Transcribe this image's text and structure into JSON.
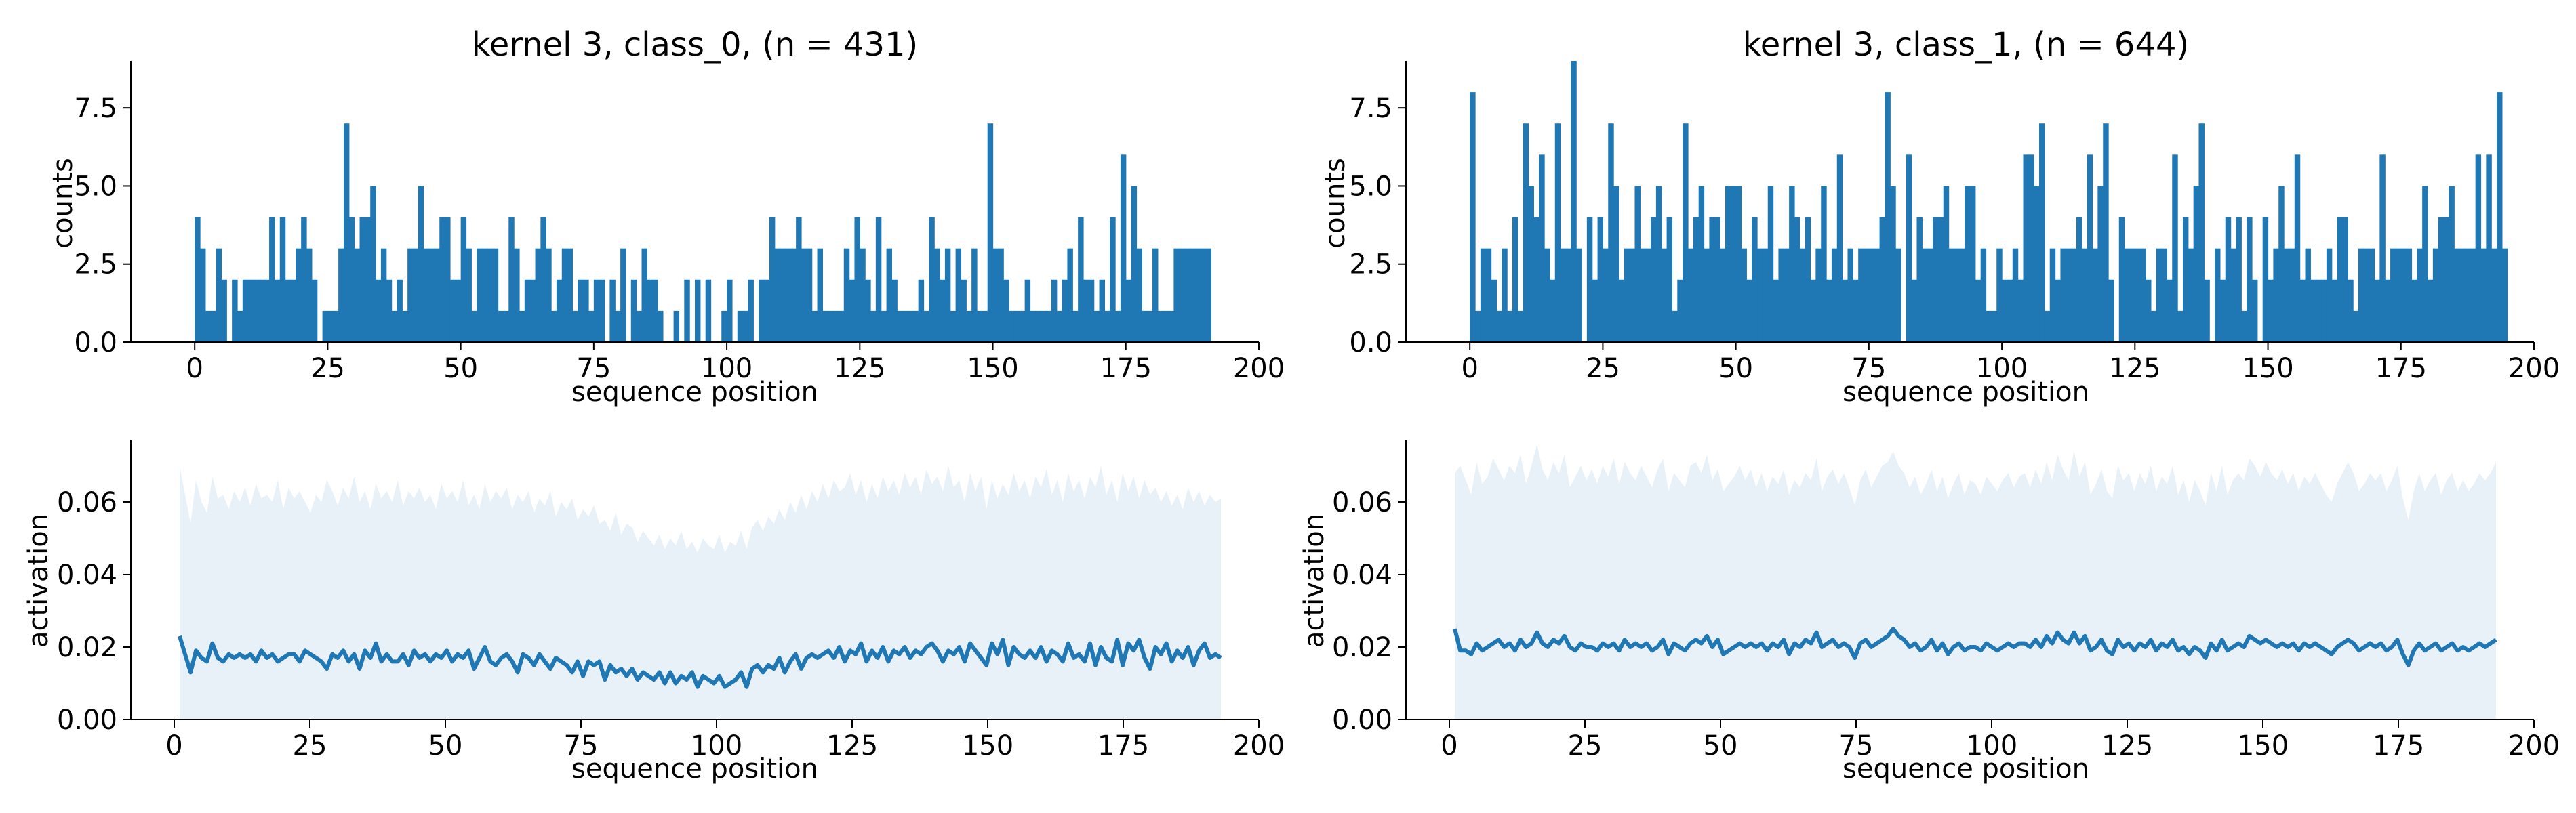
{
  "chart_data": [
    {
      "type": "bar",
      "panel": "top-left",
      "title": "kernel 3, class_0, (n = 431)",
      "xlabel": "sequence position",
      "ylabel": "counts",
      "xlim": [
        -12,
        200
      ],
      "ylim": [
        0,
        9
      ],
      "xticks": [
        0,
        25,
        50,
        75,
        100,
        125,
        150,
        175,
        200
      ],
      "xtick_labels": [
        "0",
        "25",
        "50",
        "75",
        "100",
        "125",
        "150",
        "175",
        "200"
      ],
      "yticks": [
        0,
        2.5,
        5.0,
        7.5
      ],
      "ytick_labels": [
        "0.0",
        "2.5",
        "5.0",
        "7.5"
      ],
      "color": "#1f77b4",
      "x_start": 0,
      "values": [
        4,
        3,
        1,
        1,
        3,
        2,
        0,
        2,
        1,
        2,
        2,
        2,
        2,
        2,
        4,
        2,
        4,
        2,
        2,
        3,
        4,
        3,
        2,
        0,
        1,
        1,
        1,
        3,
        7,
        4,
        3,
        4,
        4,
        5,
        2,
        3,
        2,
        1,
        2,
        1,
        3,
        3,
        5,
        3,
        3,
        3,
        4,
        4,
        2,
        2,
        4,
        3,
        1,
        3,
        3,
        3,
        3,
        1,
        1,
        4,
        3,
        1,
        2,
        2,
        3,
        4,
        3,
        1,
        2,
        3,
        3,
        1,
        2,
        2,
        1,
        2,
        2,
        0,
        2,
        1,
        3,
        0,
        2,
        1,
        3,
        2,
        2,
        1,
        0,
        0,
        1,
        0,
        2,
        0,
        2,
        0,
        2,
        0,
        0,
        1,
        2,
        0,
        1,
        1,
        2,
        0,
        2,
        2,
        4,
        3,
        3,
        3,
        3,
        4,
        3,
        3,
        1,
        3,
        1,
        1,
        1,
        1,
        3,
        2,
        4,
        3,
        2,
        1,
        4,
        1,
        3,
        2,
        1,
        1,
        1,
        1,
        2,
        1,
        4,
        3,
        2,
        3,
        1,
        3,
        2,
        1,
        3,
        1,
        1,
        7,
        3,
        3,
        2,
        1,
        1,
        1,
        2,
        1,
        1,
        1,
        1,
        2,
        1,
        2,
        3,
        1,
        4,
        2,
        2,
        1,
        2,
        1,
        4,
        1,
        6,
        2,
        5,
        3,
        1,
        1,
        3,
        1,
        1,
        1,
        3,
        3,
        3,
        3,
        3,
        3,
        3
      ]
    },
    {
      "type": "bar",
      "panel": "top-right",
      "title": "kernel 3, class_1, (n = 644)",
      "xlabel": "sequence position",
      "ylabel": "counts",
      "xlim": [
        -12,
        200
      ],
      "ylim": [
        0,
        9
      ],
      "xticks": [
        0,
        25,
        50,
        75,
        100,
        125,
        150,
        175,
        200
      ],
      "xtick_labels": [
        "0",
        "25",
        "50",
        "75",
        "100",
        "125",
        "150",
        "175",
        "200"
      ],
      "yticks": [
        0,
        2.5,
        5.0,
        7.5
      ],
      "ytick_labels": [
        "0.0",
        "2.5",
        "5.0",
        "7.5"
      ],
      "color": "#1f77b4",
      "x_start": 0,
      "values": [
        8,
        1,
        3,
        3,
        2,
        1,
        3,
        1,
        4,
        1,
        7,
        5,
        4,
        6,
        3,
        2,
        7,
        3,
        3,
        9,
        3,
        0,
        4,
        2,
        4,
        3,
        7,
        5,
        2,
        3,
        3,
        5,
        3,
        3,
        4,
        5,
        3,
        4,
        1,
        2,
        7,
        3,
        4,
        5,
        3,
        4,
        4,
        3,
        5,
        5,
        5,
        3,
        2,
        4,
        3,
        3,
        5,
        2,
        3,
        3,
        5,
        4,
        3,
        4,
        2,
        3,
        5,
        2,
        3,
        6,
        2,
        3,
        2,
        3,
        3,
        3,
        3,
        4,
        8,
        5,
        3,
        0,
        6,
        2,
        4,
        3,
        3,
        4,
        4,
        5,
        3,
        3,
        3,
        5,
        5,
        2,
        3,
        1,
        1,
        3,
        2,
        2,
        3,
        2,
        6,
        6,
        5,
        7,
        1,
        3,
        2,
        3,
        3,
        3,
        4,
        3,
        6,
        3,
        5,
        7,
        2,
        0,
        4,
        3,
        3,
        3,
        3,
        2,
        1,
        3,
        3,
        2,
        6,
        1,
        4,
        3,
        5,
        7,
        2,
        0,
        3,
        2,
        4,
        3,
        4,
        1,
        4,
        2,
        0,
        4,
        2,
        3,
        5,
        3,
        3,
        6,
        2,
        3,
        2,
        2,
        2,
        3,
        2,
        4,
        4,
        2,
        1,
        3,
        3,
        3,
        2,
        6,
        2,
        3,
        3,
        3,
        3,
        2,
        3,
        5,
        2,
        3,
        4,
        4,
        5,
        3,
        3,
        3,
        3,
        6,
        3,
        6,
        3,
        8,
        3
      ]
    },
    {
      "type": "area",
      "panel": "bottom-left",
      "xlabel": "sequence position",
      "ylabel": "activation",
      "xlim": [
        -8,
        200
      ],
      "ylim": [
        0,
        0.077
      ],
      "xticks": [
        0,
        25,
        50,
        75,
        100,
        125,
        150,
        175,
        200
      ],
      "xtick_labels": [
        "0",
        "25",
        "50",
        "75",
        "100",
        "125",
        "150",
        "175",
        "200"
      ],
      "yticks": [
        0,
        0.02,
        0.04,
        0.06
      ],
      "ytick_labels": [
        "0.00",
        "0.02",
        "0.04",
        "0.06"
      ],
      "line_color": "#1f77b4",
      "band_color": "#e8f0f8",
      "x_start": 1,
      "x_end": 193,
      "mean": [
        0.023,
        0.018,
        0.013,
        0.019,
        0.017,
        0.016,
        0.021,
        0.017,
        0.016,
        0.018,
        0.017,
        0.018,
        0.017,
        0.018,
        0.016,
        0.019,
        0.017,
        0.018,
        0.016,
        0.017,
        0.018,
        0.018,
        0.016,
        0.019,
        0.018,
        0.017,
        0.016,
        0.014,
        0.018,
        0.017,
        0.019,
        0.016,
        0.018,
        0.014,
        0.019,
        0.017,
        0.021,
        0.016,
        0.018,
        0.016,
        0.016,
        0.018,
        0.015,
        0.019,
        0.017,
        0.018,
        0.016,
        0.018,
        0.017,
        0.019,
        0.016,
        0.018,
        0.017,
        0.019,
        0.014,
        0.017,
        0.02,
        0.016,
        0.015,
        0.017,
        0.018,
        0.016,
        0.013,
        0.018,
        0.017,
        0.015,
        0.018,
        0.016,
        0.014,
        0.017,
        0.016,
        0.015,
        0.013,
        0.016,
        0.012,
        0.016,
        0.015,
        0.016,
        0.011,
        0.015,
        0.013,
        0.014,
        0.012,
        0.014,
        0.011,
        0.013,
        0.012,
        0.011,
        0.013,
        0.01,
        0.013,
        0.01,
        0.012,
        0.011,
        0.013,
        0.009,
        0.012,
        0.011,
        0.01,
        0.012,
        0.009,
        0.01,
        0.011,
        0.013,
        0.009,
        0.014,
        0.015,
        0.013,
        0.015,
        0.014,
        0.017,
        0.013,
        0.016,
        0.018,
        0.014,
        0.017,
        0.018,
        0.017,
        0.018,
        0.019,
        0.017,
        0.02,
        0.016,
        0.019,
        0.018,
        0.021,
        0.016,
        0.019,
        0.017,
        0.02,
        0.016,
        0.019,
        0.018,
        0.02,
        0.017,
        0.019,
        0.018,
        0.02,
        0.021,
        0.019,
        0.016,
        0.019,
        0.018,
        0.02,
        0.016,
        0.021,
        0.019,
        0.017,
        0.015,
        0.021,
        0.018,
        0.022,
        0.015,
        0.02,
        0.018,
        0.017,
        0.019,
        0.017,
        0.02,
        0.016,
        0.019,
        0.018,
        0.016,
        0.021,
        0.017,
        0.018,
        0.016,
        0.021,
        0.015,
        0.02,
        0.017,
        0.016,
        0.022,
        0.015,
        0.021,
        0.019,
        0.022,
        0.017,
        0.014,
        0.02,
        0.018,
        0.021,
        0.016,
        0.019,
        0.017,
        0.02,
        0.015,
        0.019,
        0.021,
        0.017,
        0.018,
        0.017
      ],
      "upper": [
        0.07,
        0.062,
        0.054,
        0.066,
        0.06,
        0.057,
        0.067,
        0.061,
        0.062,
        0.058,
        0.063,
        0.06,
        0.064,
        0.059,
        0.065,
        0.061,
        0.062,
        0.06,
        0.066,
        0.058,
        0.064,
        0.061,
        0.063,
        0.06,
        0.057,
        0.062,
        0.06,
        0.066,
        0.063,
        0.059,
        0.064,
        0.061,
        0.067,
        0.06,
        0.063,
        0.058,
        0.065,
        0.061,
        0.063,
        0.06,
        0.066,
        0.059,
        0.063,
        0.061,
        0.064,
        0.06,
        0.062,
        0.058,
        0.065,
        0.061,
        0.063,
        0.06,
        0.066,
        0.059,
        0.062,
        0.058,
        0.065,
        0.06,
        0.063,
        0.061,
        0.064,
        0.058,
        0.062,
        0.06,
        0.063,
        0.057,
        0.061,
        0.059,
        0.063,
        0.056,
        0.06,
        0.058,
        0.061,
        0.055,
        0.058,
        0.056,
        0.059,
        0.054,
        0.055,
        0.052,
        0.057,
        0.051,
        0.054,
        0.053,
        0.049,
        0.052,
        0.05,
        0.048,
        0.051,
        0.047,
        0.05,
        0.048,
        0.052,
        0.047,
        0.049,
        0.046,
        0.05,
        0.048,
        0.047,
        0.051,
        0.046,
        0.049,
        0.048,
        0.052,
        0.047,
        0.053,
        0.055,
        0.052,
        0.056,
        0.054,
        0.058,
        0.055,
        0.06,
        0.057,
        0.062,
        0.058,
        0.063,
        0.06,
        0.065,
        0.061,
        0.066,
        0.063,
        0.064,
        0.068,
        0.062,
        0.066,
        0.06,
        0.065,
        0.061,
        0.067,
        0.063,
        0.066,
        0.062,
        0.068,
        0.064,
        0.067,
        0.062,
        0.069,
        0.065,
        0.067,
        0.063,
        0.07,
        0.064,
        0.066,
        0.06,
        0.068,
        0.063,
        0.067,
        0.058,
        0.066,
        0.061,
        0.065,
        0.062,
        0.068,
        0.063,
        0.066,
        0.061,
        0.067,
        0.064,
        0.069,
        0.062,
        0.066,
        0.06,
        0.068,
        0.063,
        0.066,
        0.061,
        0.067,
        0.064,
        0.07,
        0.062,
        0.066,
        0.06,
        0.068,
        0.063,
        0.067,
        0.061,
        0.066,
        0.062,
        0.064,
        0.06,
        0.063,
        0.059,
        0.062,
        0.058,
        0.064,
        0.06,
        0.063,
        0.059,
        0.062,
        0.06,
        0.061
      ],
      "lower": 0
    },
    {
      "type": "area",
      "panel": "bottom-right",
      "xlabel": "sequence position",
      "ylabel": "activation",
      "xlim": [
        -8,
        200
      ],
      "ylim": [
        0,
        0.077
      ],
      "xticks": [
        0,
        25,
        50,
        75,
        100,
        125,
        150,
        175,
        200
      ],
      "xtick_labels": [
        "0",
        "25",
        "50",
        "75",
        "100",
        "125",
        "150",
        "175",
        "200"
      ],
      "yticks": [
        0,
        0.02,
        0.04,
        0.06
      ],
      "ytick_labels": [
        "0.00",
        "0.02",
        "0.04",
        "0.06"
      ],
      "line_color": "#1f77b4",
      "band_color": "#e8f0f8",
      "x_start": 1,
      "x_end": 193,
      "mean": [
        0.025,
        0.019,
        0.019,
        0.018,
        0.021,
        0.019,
        0.02,
        0.021,
        0.022,
        0.02,
        0.021,
        0.019,
        0.022,
        0.02,
        0.021,
        0.024,
        0.021,
        0.02,
        0.022,
        0.021,
        0.023,
        0.02,
        0.019,
        0.021,
        0.02,
        0.02,
        0.019,
        0.021,
        0.02,
        0.021,
        0.019,
        0.022,
        0.02,
        0.021,
        0.02,
        0.021,
        0.019,
        0.02,
        0.022,
        0.018,
        0.021,
        0.02,
        0.019,
        0.021,
        0.022,
        0.021,
        0.023,
        0.02,
        0.022,
        0.018,
        0.019,
        0.02,
        0.021,
        0.02,
        0.021,
        0.02,
        0.021,
        0.019,
        0.021,
        0.02,
        0.022,
        0.018,
        0.021,
        0.02,
        0.022,
        0.021,
        0.024,
        0.02,
        0.021,
        0.022,
        0.02,
        0.021,
        0.02,
        0.017,
        0.021,
        0.022,
        0.02,
        0.021,
        0.022,
        0.023,
        0.025,
        0.023,
        0.022,
        0.02,
        0.021,
        0.019,
        0.02,
        0.022,
        0.019,
        0.021,
        0.018,
        0.02,
        0.021,
        0.019,
        0.02,
        0.02,
        0.019,
        0.021,
        0.02,
        0.019,
        0.02,
        0.021,
        0.02,
        0.021,
        0.021,
        0.02,
        0.022,
        0.02,
        0.023,
        0.021,
        0.024,
        0.022,
        0.021,
        0.024,
        0.021,
        0.023,
        0.019,
        0.02,
        0.022,
        0.019,
        0.018,
        0.022,
        0.02,
        0.021,
        0.019,
        0.021,
        0.02,
        0.022,
        0.019,
        0.021,
        0.02,
        0.022,
        0.019,
        0.02,
        0.018,
        0.02,
        0.019,
        0.017,
        0.021,
        0.019,
        0.022,
        0.019,
        0.02,
        0.021,
        0.02,
        0.023,
        0.022,
        0.021,
        0.022,
        0.021,
        0.02,
        0.021,
        0.02,
        0.021,
        0.019,
        0.021,
        0.02,
        0.021,
        0.02,
        0.019,
        0.018,
        0.02,
        0.021,
        0.022,
        0.021,
        0.019,
        0.02,
        0.021,
        0.02,
        0.021,
        0.019,
        0.02,
        0.022,
        0.018,
        0.015,
        0.019,
        0.021,
        0.019,
        0.02,
        0.021,
        0.019,
        0.02,
        0.021,
        0.019,
        0.02,
        0.019,
        0.02,
        0.021,
        0.02,
        0.021,
        0.022
      ],
      "upper": [
        0.068,
        0.07,
        0.066,
        0.062,
        0.071,
        0.065,
        0.067,
        0.072,
        0.069,
        0.066,
        0.07,
        0.068,
        0.073,
        0.065,
        0.07,
        0.076,
        0.069,
        0.066,
        0.071,
        0.068,
        0.073,
        0.064,
        0.067,
        0.07,
        0.066,
        0.069,
        0.065,
        0.07,
        0.067,
        0.072,
        0.065,
        0.071,
        0.068,
        0.066,
        0.07,
        0.067,
        0.064,
        0.069,
        0.072,
        0.063,
        0.068,
        0.066,
        0.064,
        0.07,
        0.071,
        0.068,
        0.073,
        0.066,
        0.069,
        0.063,
        0.065,
        0.067,
        0.07,
        0.066,
        0.069,
        0.064,
        0.068,
        0.063,
        0.067,
        0.065,
        0.069,
        0.062,
        0.066,
        0.064,
        0.068,
        0.066,
        0.072,
        0.063,
        0.067,
        0.069,
        0.065,
        0.068,
        0.064,
        0.059,
        0.066,
        0.069,
        0.064,
        0.067,
        0.07,
        0.071,
        0.074,
        0.07,
        0.068,
        0.064,
        0.067,
        0.062,
        0.065,
        0.069,
        0.063,
        0.067,
        0.061,
        0.065,
        0.068,
        0.062,
        0.066,
        0.065,
        0.062,
        0.067,
        0.065,
        0.063,
        0.066,
        0.068,
        0.064,
        0.067,
        0.068,
        0.064,
        0.069,
        0.065,
        0.071,
        0.066,
        0.073,
        0.069,
        0.066,
        0.074,
        0.067,
        0.071,
        0.062,
        0.065,
        0.069,
        0.063,
        0.061,
        0.07,
        0.066,
        0.068,
        0.063,
        0.068,
        0.065,
        0.07,
        0.063,
        0.067,
        0.065,
        0.07,
        0.062,
        0.066,
        0.06,
        0.066,
        0.063,
        0.059,
        0.068,
        0.063,
        0.07,
        0.062,
        0.066,
        0.068,
        0.066,
        0.072,
        0.07,
        0.067,
        0.071,
        0.068,
        0.066,
        0.069,
        0.065,
        0.068,
        0.063,
        0.067,
        0.065,
        0.068,
        0.065,
        0.062,
        0.06,
        0.065,
        0.068,
        0.071,
        0.068,
        0.063,
        0.065,
        0.068,
        0.066,
        0.068,
        0.063,
        0.066,
        0.07,
        0.061,
        0.055,
        0.063,
        0.068,
        0.063,
        0.066,
        0.068,
        0.062,
        0.066,
        0.068,
        0.063,
        0.066,
        0.063,
        0.065,
        0.068,
        0.066,
        0.068,
        0.071
      ],
      "lower": 0
    }
  ]
}
